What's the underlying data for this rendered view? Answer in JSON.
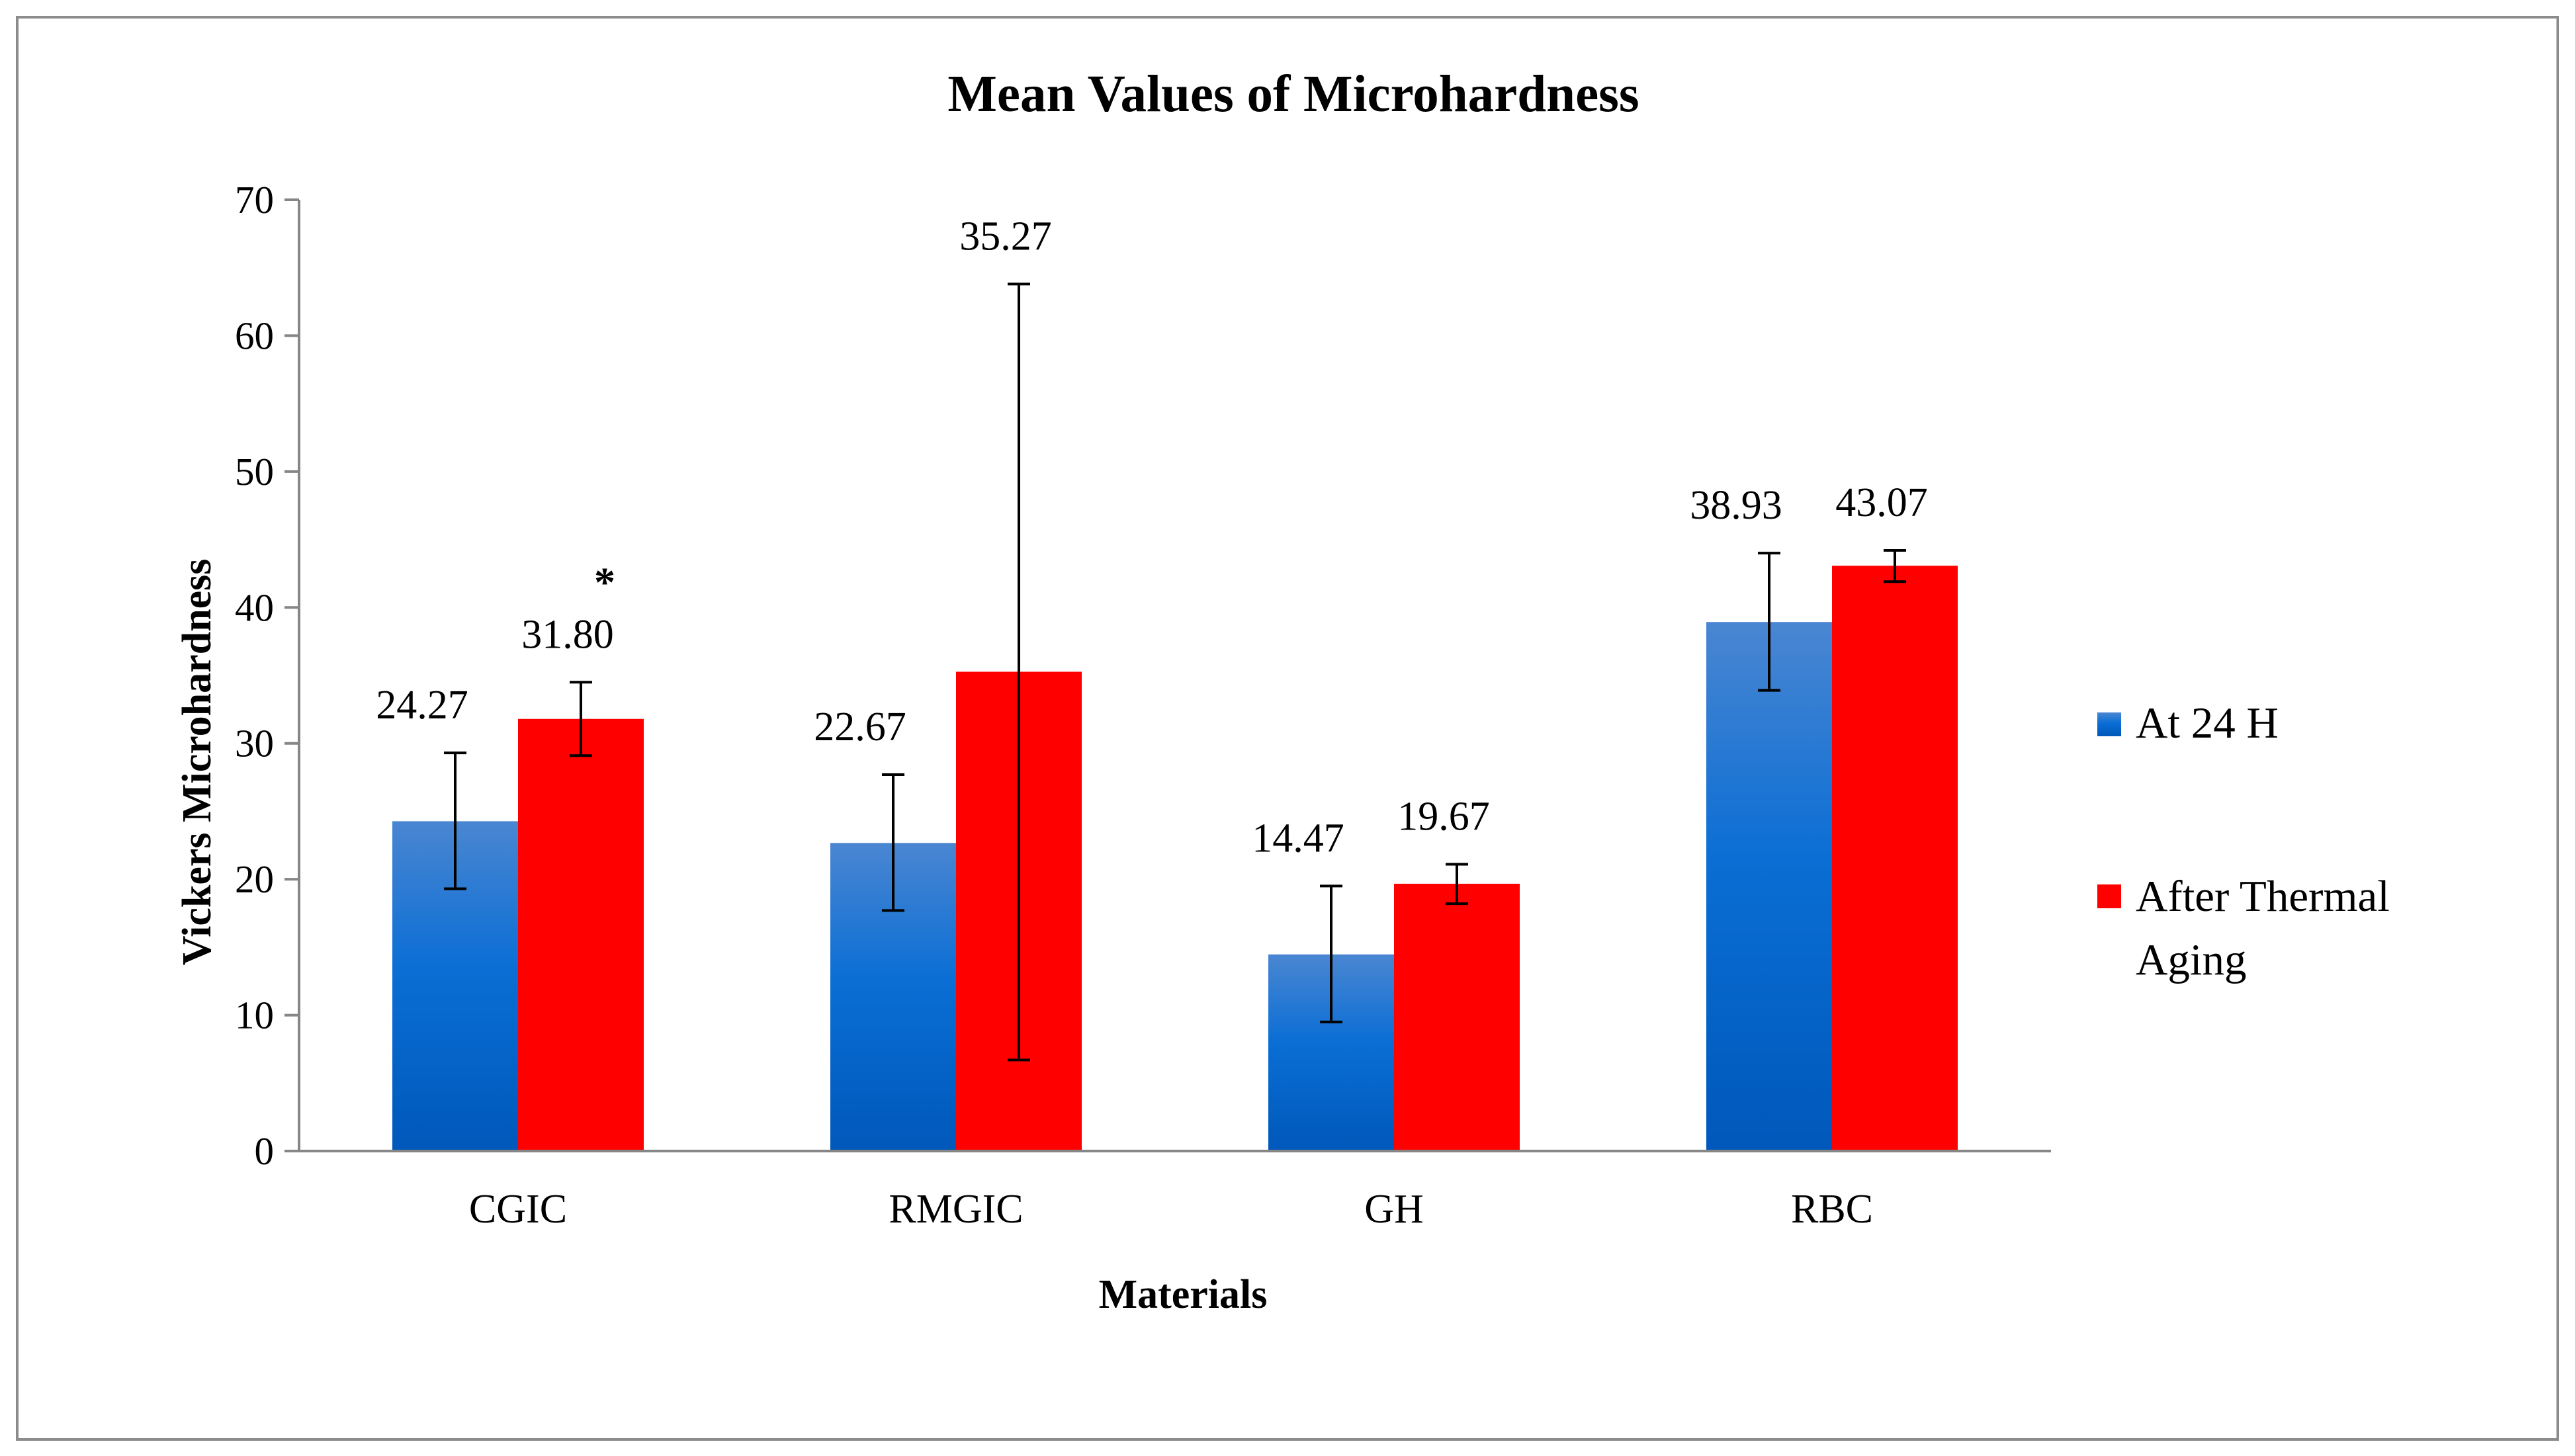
{
  "chart_data": {
    "type": "bar",
    "title": "Mean Values of Microhardness",
    "xlabel": "Materials",
    "ylabel": "Vickers Microhardness",
    "ylim": [
      0,
      70
    ],
    "yticks": [
      0,
      10,
      20,
      30,
      40,
      50,
      60,
      70
    ],
    "categories": [
      "CGIC",
      "RMGIC",
      "GH",
      "RBC"
    ],
    "series": [
      {
        "name": "At 24 H",
        "color": "#0a64c8",
        "values": [
          24.27,
          22.67,
          14.47,
          38.93
        ],
        "labels": [
          "24.27",
          "22.67",
          "14.47",
          "38.93"
        ],
        "error_low": [
          19.3,
          17.7,
          9.5,
          33.9
        ],
        "error_high": [
          29.3,
          27.7,
          19.5,
          44.0
        ]
      },
      {
        "name": "After Thermal Aging",
        "color": "#ff0000",
        "values": [
          31.8,
          35.27,
          19.67,
          43.07
        ],
        "labels": [
          "31.80",
          "35.27",
          "19.67",
          "43.07"
        ],
        "error_low": [
          29.1,
          6.7,
          18.2,
          41.9
        ],
        "error_high": [
          34.5,
          63.8,
          21.1,
          44.2
        ]
      }
    ],
    "annotations": [
      {
        "text": "*",
        "series": 1,
        "category": 0
      }
    ],
    "legend_position": "right",
    "grid": false
  }
}
